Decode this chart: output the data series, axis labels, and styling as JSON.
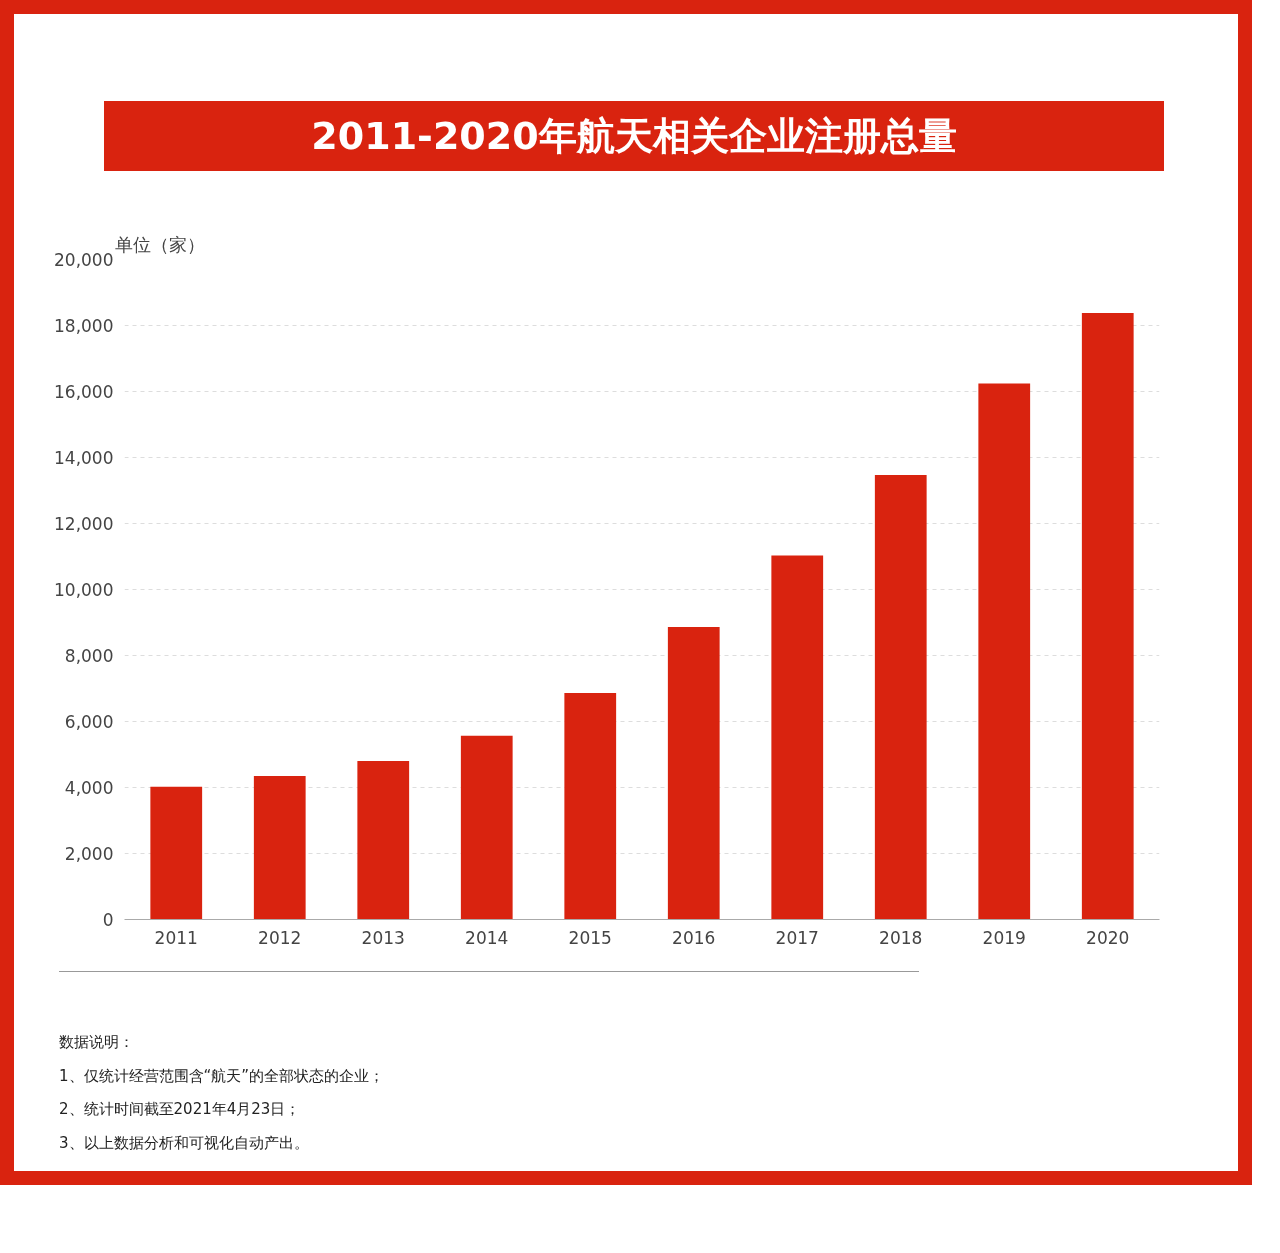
{
  "chart_data": {
    "type": "bar",
    "title": "2011-2020年航天相关企业注册总量",
    "ylabel": "单位（家）",
    "categories": [
      "2011",
      "2012",
      "2013",
      "2014",
      "2015",
      "2016",
      "2017",
      "2018",
      "2019",
      "2020"
    ],
    "values": [
      4020,
      4350,
      4800,
      5570,
      6860,
      8860,
      11030,
      13470,
      16240,
      18380
    ],
    "color": "#d9230f",
    "ylim": [
      0,
      20000
    ],
    "yticks": [
      {
        "value": 0,
        "label": "0"
      },
      {
        "value": 2000,
        "label": "2,000"
      },
      {
        "value": 4000,
        "label": "4,000"
      },
      {
        "value": 6000,
        "label": "6,000"
      },
      {
        "value": 8000,
        "label": "8,000"
      },
      {
        "value": 10000,
        "label": "10,000"
      },
      {
        "value": 12000,
        "label": "12,000"
      },
      {
        "value": 14000,
        "label": "14,000"
      },
      {
        "value": 16000,
        "label": "16,000"
      },
      {
        "value": 18000,
        "label": "18,000"
      },
      {
        "value": 20000,
        "label": "20,000"
      }
    ],
    "grid": "y",
    "annotations": [
      "数据说明：",
      "1、仅统计经营范围含“航天”的全部状态的企业；",
      "2、统计时间截至2021年4月23日；",
      "3、以上数据分析和可视化自动产出。"
    ]
  }
}
